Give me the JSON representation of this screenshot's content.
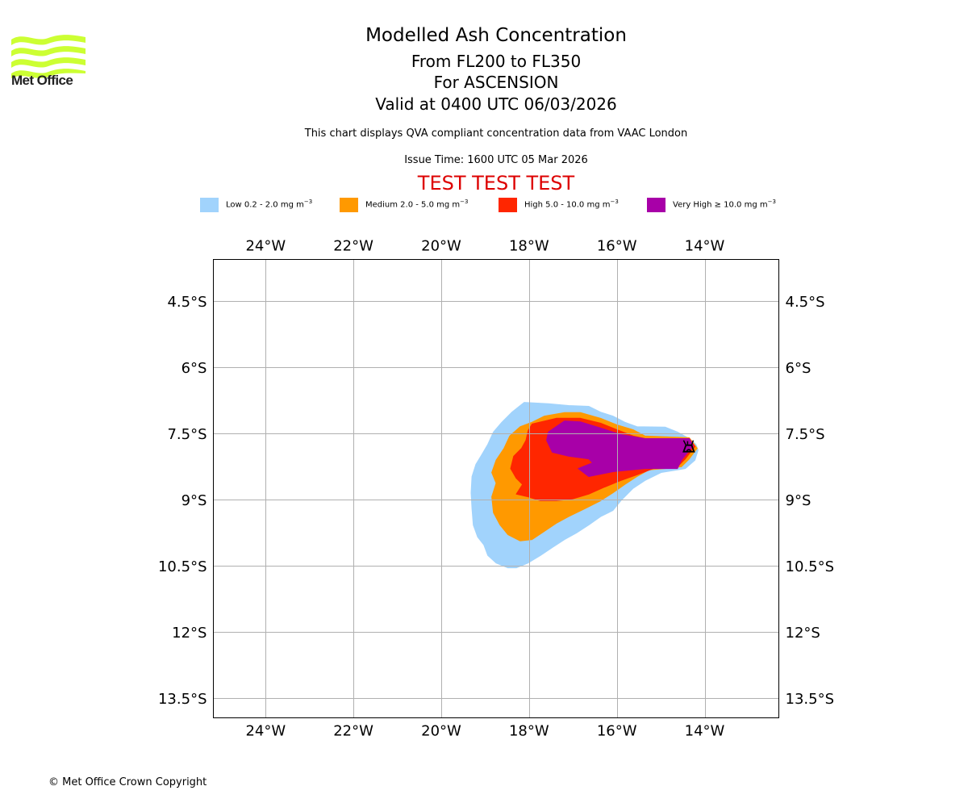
{
  "logo": {
    "text": "Met Office",
    "color": "#ccff33"
  },
  "title": {
    "line1": "Modelled Ash Concentration",
    "line2": "From FL200 to FL350",
    "line3": "For ASCENSION",
    "line4": "Valid at 0400 UTC 06/03/2026"
  },
  "subtitle": "This chart displays QVA compliant concentration data from VAAC London",
  "issue_time": "Issue Time: 1600 UTC 05 Mar 2026",
  "test_banner": "TEST TEST TEST",
  "legend": [
    {
      "label": "Low 0.2 - 2.0 mg m",
      "unit_exp": "−3",
      "color": "#a1d3fc"
    },
    {
      "label": "Medium 2.0 - 5.0 mg m",
      "unit_exp": "−3",
      "color": "#ff9900"
    },
    {
      "label": "High 5.0 - 10.0 mg m",
      "unit_exp": "−3",
      "color": "#ff2600"
    },
    {
      "label": "Very High  ≥  10.0 mg m",
      "unit_exp": "−3",
      "color": "#a800a8"
    }
  ],
  "footer": "© Met Office Crown Copyright",
  "chart_data": {
    "type": "map-contour",
    "title": "Modelled Ash Concentration",
    "lon_range": [
      -25.19,
      -12.31
    ],
    "lat_range": [
      -13.94,
      -3.55
    ],
    "grid": true,
    "lon_ticks": [
      {
        "value": -24,
        "label": "24°W"
      },
      {
        "value": -22,
        "label": "22°W"
      },
      {
        "value": -20,
        "label": "20°W"
      },
      {
        "value": -18,
        "label": "18°W"
      },
      {
        "value": -16,
        "label": "16°W"
      },
      {
        "value": -14,
        "label": "14°W"
      }
    ],
    "lat_ticks": [
      {
        "value": -4.5,
        "label": "4.5°S"
      },
      {
        "value": -6,
        "label": "6°S"
      },
      {
        "value": -7.5,
        "label": "7.5°S"
      },
      {
        "value": -9,
        "label": "9°S"
      },
      {
        "value": -10.5,
        "label": "10.5°S"
      },
      {
        "value": -12,
        "label": "12°S"
      },
      {
        "value": -13.5,
        "label": "13.5°S"
      }
    ],
    "volcano": {
      "name": "ASCENSION",
      "lon": -14.37,
      "lat": -7.78,
      "symbol": "volcano-icon"
    },
    "contours": [
      {
        "level": "Low",
        "range_mg_m3": [
          0.2,
          2.0
        ],
        "color": "#a1d3fc",
        "polygon": [
          [
            -18.11,
            -6.79
          ],
          [
            -17.56,
            -6.82
          ],
          [
            -17.1,
            -6.86
          ],
          [
            -16.64,
            -6.88
          ],
          [
            -16.37,
            -7.01
          ],
          [
            -16.09,
            -7.1
          ],
          [
            -15.82,
            -7.24
          ],
          [
            -15.54,
            -7.34
          ],
          [
            -14.9,
            -7.35
          ],
          [
            -14.62,
            -7.46
          ],
          [
            -14.35,
            -7.61
          ],
          [
            -14.2,
            -7.74
          ],
          [
            -14.15,
            -7.87
          ],
          [
            -14.22,
            -8.1
          ],
          [
            -14.44,
            -8.29
          ],
          [
            -14.62,
            -8.32
          ],
          [
            -14.99,
            -8.38
          ],
          [
            -15.36,
            -8.56
          ],
          [
            -15.63,
            -8.74
          ],
          [
            -15.91,
            -9.02
          ],
          [
            -16.09,
            -9.24
          ],
          [
            -16.37,
            -9.38
          ],
          [
            -16.64,
            -9.57
          ],
          [
            -16.92,
            -9.75
          ],
          [
            -17.19,
            -9.9
          ],
          [
            -17.47,
            -10.08
          ],
          [
            -17.74,
            -10.26
          ],
          [
            -18.02,
            -10.43
          ],
          [
            -18.29,
            -10.54
          ],
          [
            -18.48,
            -10.54
          ],
          [
            -18.75,
            -10.43
          ],
          [
            -18.94,
            -10.26
          ],
          [
            -19.03,
            -10.02
          ],
          [
            -19.17,
            -9.84
          ],
          [
            -19.27,
            -9.57
          ],
          [
            -19.3,
            -9.2
          ],
          [
            -19.32,
            -8.84
          ],
          [
            -19.3,
            -8.47
          ],
          [
            -19.21,
            -8.19
          ],
          [
            -19.08,
            -7.98
          ],
          [
            -18.94,
            -7.74
          ],
          [
            -18.81,
            -7.46
          ],
          [
            -18.62,
            -7.24
          ],
          [
            -18.39,
            -7.01
          ],
          [
            -18.2,
            -6.86
          ]
        ]
      },
      {
        "level": "Medium",
        "range_mg_m3": [
          2.0,
          5.0
        ],
        "color": "#ff9900",
        "polygon": [
          [
            -17.93,
            -7.24
          ],
          [
            -17.65,
            -7.1
          ],
          [
            -17.19,
            -7.02
          ],
          [
            -16.83,
            -7.02
          ],
          [
            -16.37,
            -7.15
          ],
          [
            -16.0,
            -7.3
          ],
          [
            -15.63,
            -7.41
          ],
          [
            -15.36,
            -7.55
          ],
          [
            -14.35,
            -7.59
          ],
          [
            -14.17,
            -7.83
          ],
          [
            -14.35,
            -8.07
          ],
          [
            -14.53,
            -8.25
          ],
          [
            -14.9,
            -8.29
          ],
          [
            -15.27,
            -8.32
          ],
          [
            -15.54,
            -8.47
          ],
          [
            -15.82,
            -8.65
          ],
          [
            -16.09,
            -8.84
          ],
          [
            -16.37,
            -9.02
          ],
          [
            -16.73,
            -9.2
          ],
          [
            -17.1,
            -9.38
          ],
          [
            -17.38,
            -9.53
          ],
          [
            -17.65,
            -9.71
          ],
          [
            -17.93,
            -9.9
          ],
          [
            -18.2,
            -9.93
          ],
          [
            -18.48,
            -9.79
          ],
          [
            -18.66,
            -9.57
          ],
          [
            -18.81,
            -9.29
          ],
          [
            -18.85,
            -8.93
          ],
          [
            -18.75,
            -8.62
          ],
          [
            -18.85,
            -8.38
          ],
          [
            -18.75,
            -8.1
          ],
          [
            -18.57,
            -7.83
          ],
          [
            -18.44,
            -7.55
          ],
          [
            -18.2,
            -7.34
          ]
        ]
      },
      {
        "level": "High",
        "range_mg_m3": [
          5.0,
          10.0
        ],
        "color": "#ff2600",
        "polygon": [
          [
            -17.93,
            -7.28
          ],
          [
            -17.38,
            -7.15
          ],
          [
            -16.83,
            -7.15
          ],
          [
            -16.37,
            -7.26
          ],
          [
            -16.0,
            -7.41
          ],
          [
            -15.63,
            -7.55
          ],
          [
            -15.36,
            -7.61
          ],
          [
            -14.35,
            -7.61
          ],
          [
            -14.22,
            -7.79
          ],
          [
            -14.44,
            -8.07
          ],
          [
            -14.62,
            -8.25
          ],
          [
            -15.17,
            -8.29
          ],
          [
            -15.54,
            -8.43
          ],
          [
            -15.91,
            -8.56
          ],
          [
            -16.28,
            -8.71
          ],
          [
            -16.64,
            -8.87
          ],
          [
            -17.01,
            -8.98
          ],
          [
            -17.38,
            -9.02
          ],
          [
            -17.74,
            -9.02
          ],
          [
            -18.02,
            -8.93
          ],
          [
            -18.29,
            -8.87
          ],
          [
            -18.15,
            -8.65
          ],
          [
            -18.29,
            -8.51
          ],
          [
            -18.42,
            -8.29
          ],
          [
            -18.35,
            -8.01
          ],
          [
            -18.17,
            -7.83
          ],
          [
            -18.07,
            -7.65
          ],
          [
            -18.02,
            -7.43
          ]
        ]
      },
      {
        "level": "Very High",
        "range_mg_m3": [
          10.0,
          null
        ],
        "color": "#a800a8",
        "polygon": [
          [
            -17.19,
            -7.21
          ],
          [
            -16.83,
            -7.23
          ],
          [
            -16.37,
            -7.37
          ],
          [
            -15.91,
            -7.52
          ],
          [
            -15.36,
            -7.61
          ],
          [
            -14.35,
            -7.61
          ],
          [
            -14.26,
            -7.77
          ],
          [
            -14.53,
            -8.1
          ],
          [
            -14.62,
            -8.29
          ],
          [
            -15.36,
            -8.29
          ],
          [
            -16.09,
            -8.36
          ],
          [
            -16.64,
            -8.47
          ],
          [
            -16.88,
            -8.29
          ],
          [
            -16.55,
            -8.16
          ],
          [
            -16.64,
            -8.07
          ],
          [
            -17.1,
            -8.01
          ],
          [
            -17.47,
            -7.92
          ],
          [
            -17.6,
            -7.65
          ],
          [
            -17.56,
            -7.46
          ]
        ]
      }
    ]
  }
}
